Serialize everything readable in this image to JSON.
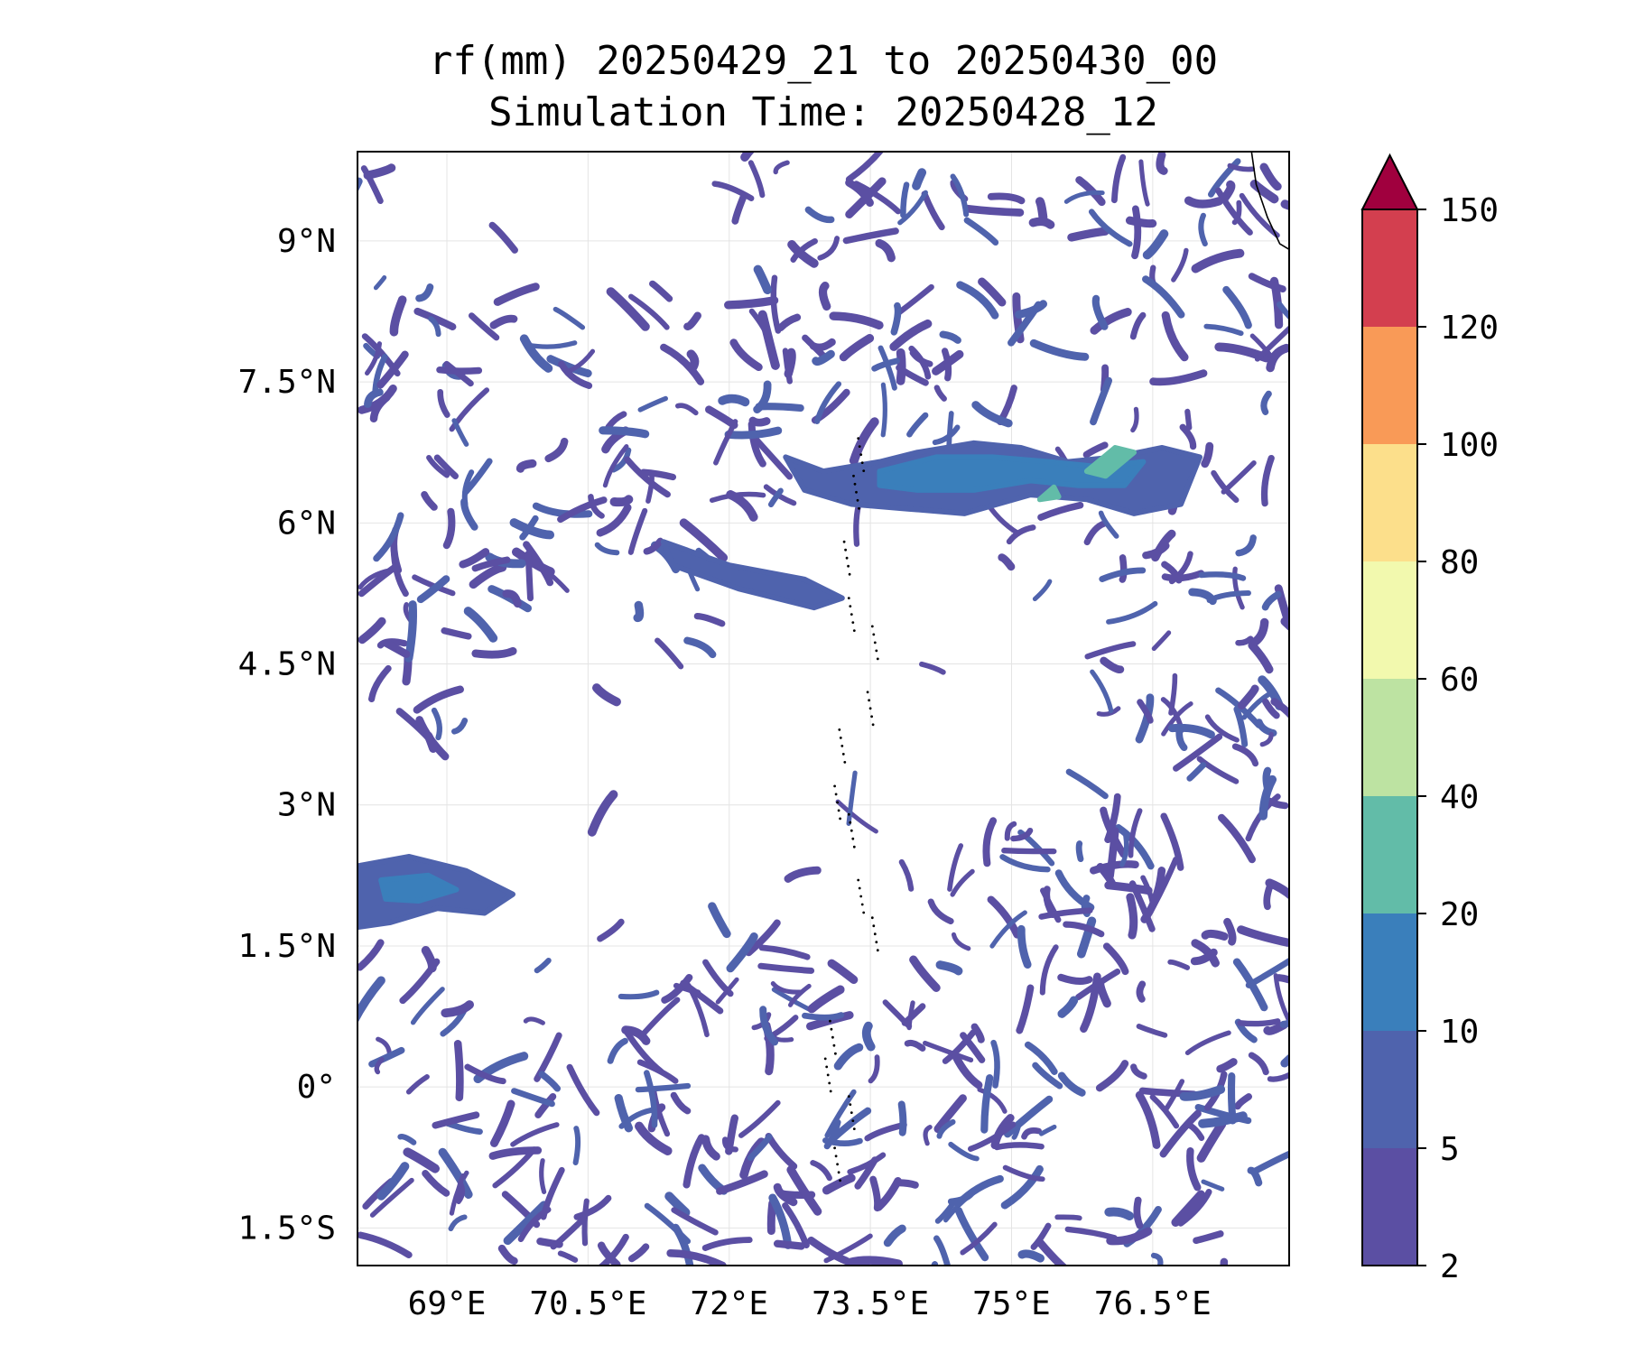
{
  "title": {
    "line1": "rf(mm) 20250429_21 to 20250430_00",
    "line2": "Simulation Time: 20250428_12"
  },
  "map": {
    "lon_range": [
      68.05,
      77.95
    ],
    "lat_range": [
      -1.9,
      9.95
    ],
    "x_ticks": [
      {
        "value": 69,
        "label": "69°E"
      },
      {
        "value": 70.5,
        "label": "70.5°E"
      },
      {
        "value": 72,
        "label": "72°E"
      },
      {
        "value": 73.5,
        "label": "73.5°E"
      },
      {
        "value": 75,
        "label": "75°E"
      },
      {
        "value": 76.5,
        "label": "76.5°E"
      }
    ],
    "y_ticks": [
      {
        "value": 9,
        "label": "9°N"
      },
      {
        "value": 7.5,
        "label": "7.5°N"
      },
      {
        "value": 6,
        "label": "6°N"
      },
      {
        "value": 4.5,
        "label": "4.5°N"
      },
      {
        "value": 3,
        "label": "3°N"
      },
      {
        "value": 1.5,
        "label": "1.5°N"
      },
      {
        "value": 0,
        "label": "0°"
      },
      {
        "value": -1.5,
        "label": "1.5°S"
      }
    ],
    "grid": true
  },
  "colorbar": {
    "levels": [
      "2",
      "5",
      "10",
      "20",
      "40",
      "60",
      "80",
      "100",
      "120",
      "150"
    ],
    "colors": [
      "#5b4fa3",
      "#4f63ad",
      "#3a7fbb",
      "#62bca8",
      "#bde3a2",
      "#f2f9ae",
      "#fcdf8b",
      "#f99a57",
      "#d33f4f"
    ],
    "extend_color": "#a0003e"
  },
  "chart_data": {
    "type": "heatmap",
    "title": "rf(mm) 20250429_21 to 20250430_00",
    "subtitle": "Simulation Time: 20250428_12",
    "xlabel": "",
    "ylabel": "",
    "xlim": [
      68.05,
      77.95
    ],
    "ylim": [
      -1.9,
      9.95
    ],
    "color_levels": [
      2,
      5,
      10,
      20,
      40,
      60,
      80,
      100,
      120,
      150
    ],
    "extend": "max",
    "features": [
      {
        "level": "5-10",
        "path": [
          [
            72.6,
            6.7
          ],
          [
            73.0,
            6.55
          ],
          [
            73.6,
            6.65
          ],
          [
            74.0,
            6.75
          ],
          [
            74.6,
            6.85
          ],
          [
            75.1,
            6.8
          ],
          [
            75.6,
            6.65
          ],
          [
            76.1,
            6.7
          ],
          [
            76.6,
            6.8
          ],
          [
            77.0,
            6.7
          ],
          [
            76.8,
            6.2
          ],
          [
            76.3,
            6.1
          ],
          [
            75.8,
            6.25
          ],
          [
            75.2,
            6.3
          ],
          [
            74.5,
            6.1
          ],
          [
            73.9,
            6.15
          ],
          [
            73.3,
            6.2
          ],
          [
            72.8,
            6.35
          ]
        ]
      },
      {
        "level": "10-20",
        "path": [
          [
            73.6,
            6.55
          ],
          [
            74.2,
            6.7
          ],
          [
            74.8,
            6.7
          ],
          [
            75.4,
            6.65
          ],
          [
            75.9,
            6.6
          ],
          [
            76.4,
            6.65
          ],
          [
            76.2,
            6.4
          ],
          [
            75.7,
            6.4
          ],
          [
            75.2,
            6.45
          ],
          [
            74.6,
            6.35
          ],
          [
            74.0,
            6.35
          ],
          [
            73.6,
            6.4
          ]
        ]
      },
      {
        "level": "20-40",
        "path": [
          [
            75.8,
            6.55
          ],
          [
            76.1,
            6.8
          ],
          [
            76.3,
            6.75
          ],
          [
            76.0,
            6.5
          ]
        ]
      },
      {
        "level": "20-40",
        "path": [
          [
            75.3,
            6.25
          ],
          [
            75.45,
            6.38
          ],
          [
            75.5,
            6.28
          ]
        ]
      },
      {
        "level": "5-10",
        "path": [
          [
            68.05,
            2.35
          ],
          [
            68.6,
            2.45
          ],
          [
            69.2,
            2.3
          ],
          [
            69.7,
            2.05
          ],
          [
            69.4,
            1.85
          ],
          [
            68.9,
            1.9
          ],
          [
            68.4,
            1.75
          ],
          [
            68.05,
            1.7
          ]
        ]
      },
      {
        "level": "10-20",
        "path": [
          [
            68.3,
            2.2
          ],
          [
            68.8,
            2.25
          ],
          [
            69.1,
            2.1
          ],
          [
            68.7,
            1.98
          ],
          [
            68.35,
            2.0
          ]
        ]
      },
      {
        "level": "5-10",
        "path": [
          [
            71.3,
            5.8
          ],
          [
            72.0,
            5.55
          ],
          [
            72.8,
            5.4
          ],
          [
            73.2,
            5.2
          ],
          [
            72.9,
            5.1
          ],
          [
            72.1,
            5.3
          ],
          [
            71.4,
            5.55
          ]
        ]
      }
    ],
    "coastline": [
      [
        77.55,
        9.95
      ],
      [
        77.6,
        9.6
      ],
      [
        77.72,
        9.25
      ],
      [
        77.85,
        8.97
      ],
      [
        78.05,
        8.85
      ],
      [
        78.3,
        8.8
      ],
      [
        78.45,
        8.75
      ],
      [
        78.6,
        8.6
      ],
      [
        78.85,
        8.4
      ],
      [
        79.0,
        8.2
      ]
    ],
    "islands": [
      [
        73.4,
        6.9
      ],
      [
        73.35,
        6.5
      ],
      [
        73.25,
        5.8
      ],
      [
        73.3,
        5.2
      ],
      [
        73.55,
        4.9
      ],
      [
        73.5,
        4.2
      ],
      [
        73.2,
        3.8
      ],
      [
        73.15,
        3.2
      ],
      [
        73.3,
        2.9
      ],
      [
        73.4,
        2.2
      ],
      [
        73.55,
        1.8
      ],
      [
        73.1,
        0.7
      ],
      [
        73.05,
        0.3
      ],
      [
        73.3,
        -0.1
      ],
      [
        73.15,
        -0.65
      ]
    ]
  }
}
